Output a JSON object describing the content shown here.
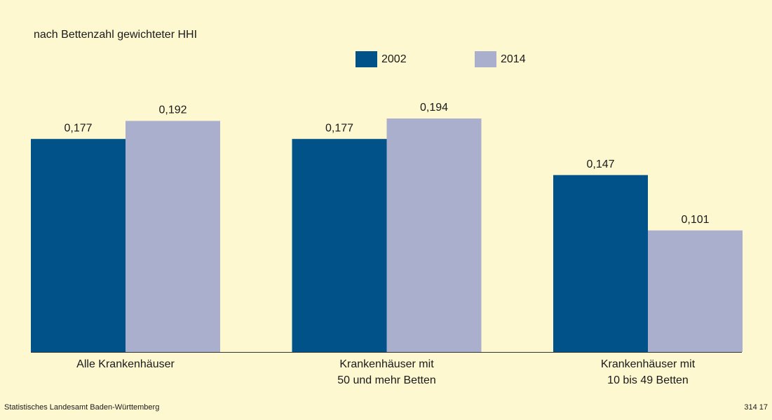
{
  "chart_data": {
    "type": "bar",
    "subtitle": "nach Bettenzahl gewichteter HHI",
    "categories": [
      [
        "Alle Krankenhäuser"
      ],
      [
        "Krankenhäuser mit",
        "50 und mehr Betten"
      ],
      [
        "Krankenhäuser mit",
        "10 bis 49 Betten"
      ]
    ],
    "series": [
      {
        "name": "2002",
        "color": "#005288",
        "values": [
          0.177,
          0.177,
          0.147
        ],
        "value_labels": [
          "0,177",
          "0,177",
          "0,147"
        ]
      },
      {
        "name": "2014",
        "color": "#a9afcc",
        "values": [
          0.192,
          0.194,
          0.101
        ],
        "value_labels": [
          "0,192",
          "0,194",
          "0,101"
        ]
      }
    ],
    "source": "Statistisches Landesamt Baden-Württemberg",
    "code": "314 17"
  }
}
